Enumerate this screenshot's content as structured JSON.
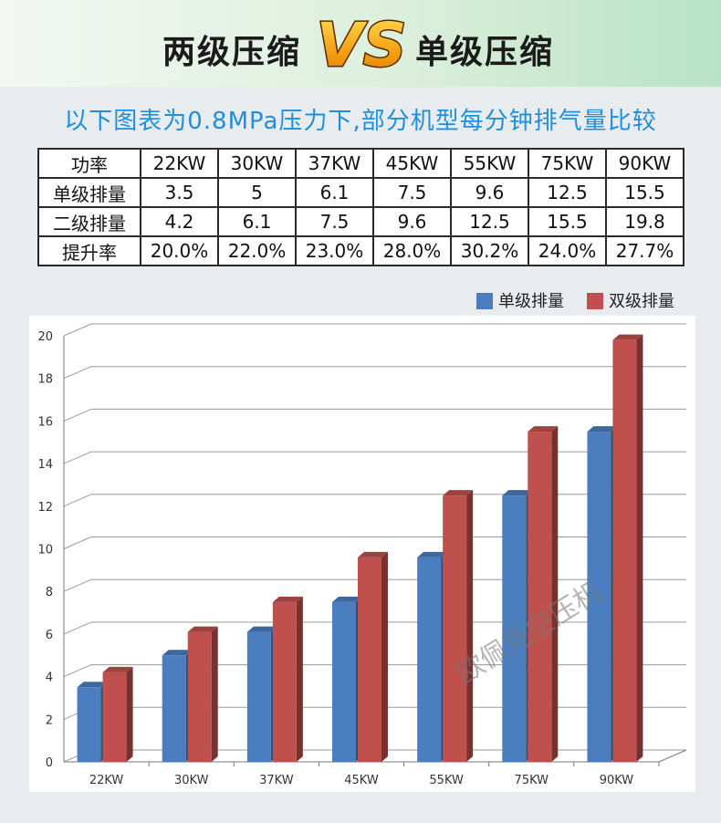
{
  "banner": {
    "left_text": "两级压缩",
    "vs_text": "VS",
    "right_text": "单级压缩"
  },
  "subtitle": "以下图表为0.8MPa压力下,部分机型每分钟排气量比较",
  "table": {
    "rows": [
      [
        "功率",
        "22KW",
        "30KW",
        "37KW",
        "45KW",
        "55KW",
        "75KW",
        "90KW"
      ],
      [
        "单级排量",
        "3.5",
        "5",
        "6.1",
        "7.5",
        "9.6",
        "12.5",
        "15.5"
      ],
      [
        "二级排量",
        "4.2",
        "6.1",
        "7.5",
        "9.6",
        "12.5",
        "15.5",
        "19.8"
      ],
      [
        "提升率",
        "20.0%",
        "22.0%",
        "23.0%",
        "28.0%",
        "30.2%",
        "24.0%",
        "27.7%"
      ]
    ]
  },
  "legend": [
    {
      "label": "单级排量",
      "color": "#4a7ebf"
    },
    {
      "label": "双级排量",
      "color": "#c0504d"
    }
  ],
  "watermark": "欧佩克空压机",
  "chart_data": {
    "type": "bar",
    "categories": [
      "22KW",
      "30KW",
      "37KW",
      "45KW",
      "55KW",
      "75KW",
      "90KW"
    ],
    "series": [
      {
        "name": "单级排量",
        "values": [
          3.5,
          5,
          6.1,
          7.5,
          9.6,
          12.5,
          15.5
        ],
        "color": "#4a7ebf"
      },
      {
        "name": "双级排量",
        "values": [
          4.2,
          6.1,
          7.5,
          9.6,
          12.5,
          15.5,
          19.8
        ],
        "color": "#c0504d"
      }
    ],
    "yticks": [
      "0",
      "2",
      "4",
      "6",
      "8",
      "10",
      "12",
      "14",
      "16",
      "18",
      "20"
    ],
    "ylim": [
      0,
      20
    ],
    "grid": true,
    "legend_position": "top-right",
    "style": "3d"
  }
}
